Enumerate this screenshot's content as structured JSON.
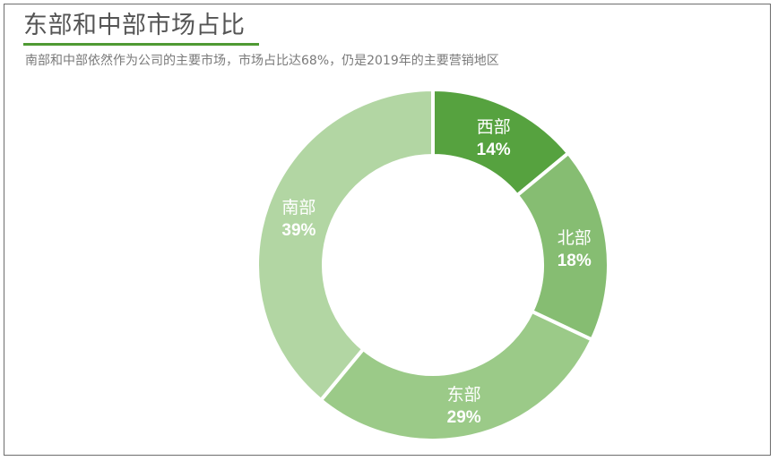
{
  "title": "东部和中部市场占比",
  "subtitle": "南部和中部依然作为公司的主要市场，市场占比达68%，仍是2019年的主要营销地区",
  "colors": {
    "accent": "#4f9a33",
    "title_text": "#555555",
    "subtitle_text": "#7a7a7a",
    "frame": "#6e6e6e"
  },
  "chart_data": {
    "type": "pie",
    "variant": "donut",
    "title": "东部和中部市场占比",
    "start_angle_deg": 0,
    "direction": "clockwise",
    "slices": [
      {
        "name": "西部",
        "value": 14,
        "label": "14%",
        "color": "#56a23f"
      },
      {
        "name": "北部",
        "value": 18,
        "label": "18%",
        "color": "#86bd72"
      },
      {
        "name": "东部",
        "value": 29,
        "label": "29%",
        "color": "#9bca88"
      },
      {
        "name": "南部",
        "value": 39,
        "label": "39%",
        "color": "#b2d6a3"
      }
    ]
  }
}
